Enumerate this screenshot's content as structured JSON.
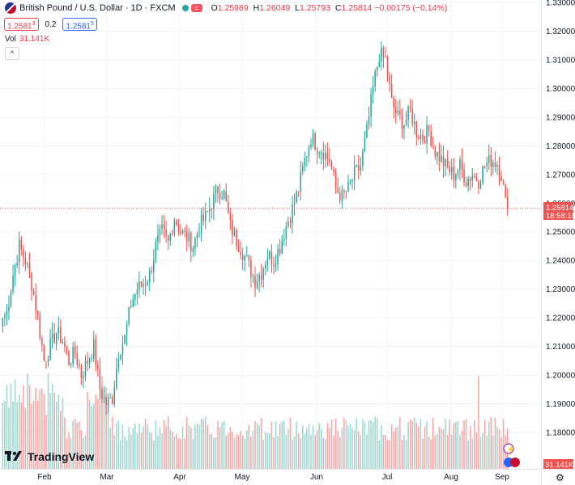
{
  "header": {
    "symbol": "British Pound / U.S. Dollar · 1D · FXCM",
    "open_label": "O",
    "open": "1.25989",
    "high_label": "H",
    "high": "1.26049",
    "low_label": "L",
    "low": "1.25793",
    "close_label": "C",
    "close": "1.25814",
    "change": "−0.00175 (−0.14%)",
    "sell_price": "1.2581",
    "sell_sup": "3",
    "spread": "0.2",
    "buy_price": "1.2581",
    "buy_sup": "5",
    "eq_icon": "="
  },
  "volume": {
    "label": "Vol",
    "value": "31.141K"
  },
  "collapse_icon": "chevron-up-icon",
  "logo": {
    "text": "TradingView"
  },
  "price_tag": {
    "price": "1.25814",
    "countdown": "18:58:18"
  },
  "volume_tag": "31.141K",
  "colors": {
    "up": "#26a69a",
    "down": "#ef5350",
    "up_vol": "#9ed7d1",
    "down_vol": "#f7a6a6"
  },
  "chart_data": {
    "type": "candlestick",
    "ylim": [
      1.17,
      1.33
    ],
    "y_ticks": [
      1.18,
      1.19,
      1.2,
      1.21,
      1.22,
      1.23,
      1.24,
      1.25,
      1.26,
      1.27,
      1.28,
      1.29,
      1.3,
      1.31,
      1.32,
      1.33
    ],
    "y_tick_labels": [
      "1.18000",
      "1.19000",
      "1.20000",
      "1.21000",
      "1.22000",
      "1.23000",
      "1.24000",
      "1.25000",
      "1.26000",
      "1.27000",
      "1.28000",
      "1.29000",
      "1.30000",
      "1.31000",
      "1.32000",
      "1.33000"
    ],
    "x_tick_labels": [
      "Feb",
      "Mar",
      "Apr",
      "May",
      "Jun",
      "Jul",
      "Aug",
      "Sep"
    ],
    "last_price": 1.25814,
    "anchors": [
      [
        0,
        1.22
      ],
      [
        2,
        1.222
      ],
      [
        5,
        1.235
      ],
      [
        8,
        1.245
      ],
      [
        11,
        1.24
      ],
      [
        14,
        1.232
      ],
      [
        17,
        1.22
      ],
      [
        20,
        1.205
      ],
      [
        23,
        1.21
      ],
      [
        26,
        1.215
      ],
      [
        29,
        1.212
      ],
      [
        32,
        1.205
      ],
      [
        35,
        1.208
      ],
      [
        38,
        1.2
      ],
      [
        41,
        1.205
      ],
      [
        44,
        1.21
      ],
      [
        47,
        1.195
      ],
      [
        50,
        1.19
      ],
      [
        53,
        1.192
      ],
      [
        56,
        1.208
      ],
      [
        59,
        1.213
      ],
      [
        62,
        1.225
      ],
      [
        65,
        1.23
      ],
      [
        68,
        1.232
      ],
      [
        71,
        1.235
      ],
      [
        74,
        1.245
      ],
      [
        77,
        1.25
      ],
      [
        80,
        1.246
      ],
      [
        83,
        1.255
      ],
      [
        86,
        1.25
      ],
      [
        89,
        1.248
      ],
      [
        92,
        1.245
      ],
      [
        95,
        1.252
      ],
      [
        98,
        1.255
      ],
      [
        101,
        1.26
      ],
      [
        104,
        1.265
      ],
      [
        107,
        1.263
      ],
      [
        110,
        1.252
      ],
      [
        113,
        1.247
      ],
      [
        116,
        1.243
      ],
      [
        119,
        1.238
      ],
      [
        122,
        1.233
      ],
      [
        125,
        1.236
      ],
      [
        128,
        1.242
      ],
      [
        131,
        1.24
      ],
      [
        134,
        1.245
      ],
      [
        137,
        1.252
      ],
      [
        140,
        1.258
      ],
      [
        143,
        1.265
      ],
      [
        146,
        1.275
      ],
      [
        149,
        1.283
      ],
      [
        152,
        1.28
      ],
      [
        155,
        1.278
      ],
      [
        158,
        1.275
      ],
      [
        161,
        1.265
      ],
      [
        164,
        1.262
      ],
      [
        167,
        1.265
      ],
      [
        170,
        1.27
      ],
      [
        173,
        1.273
      ],
      [
        176,
        1.285
      ],
      [
        179,
        1.3
      ],
      [
        182,
        1.312
      ],
      [
        185,
        1.31
      ],
      [
        188,
        1.295
      ],
      [
        191,
        1.29
      ],
      [
        194,
        1.288
      ],
      [
        197,
        1.292
      ],
      [
        200,
        1.285
      ],
      [
        203,
        1.283
      ],
      [
        206,
        1.285
      ],
      [
        209,
        1.278
      ],
      [
        212,
        1.275
      ],
      [
        215,
        1.272
      ],
      [
        218,
        1.27
      ],
      [
        221,
        1.273
      ],
      [
        224,
        1.268
      ],
      [
        227,
        1.27
      ],
      [
        230,
        1.268
      ],
      [
        233,
        1.273
      ],
      [
        236,
        1.275
      ],
      [
        239,
        1.274
      ],
      [
        241,
        1.27
      ],
      [
        243,
        1.26
      ],
      [
        244,
        1.258
      ]
    ],
    "volume_units": "relative"
  }
}
